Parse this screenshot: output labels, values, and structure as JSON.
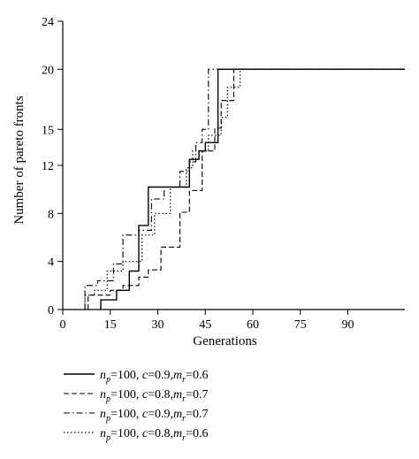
{
  "chart_data": {
    "type": "line",
    "step": true,
    "xlabel": "Generations",
    "ylabel": "Number of pareto fronts",
    "xlim": [
      0,
      108
    ],
    "ylim": [
      0,
      24
    ],
    "x_ticks": [
      "0",
      "15",
      "30",
      "45",
      "60",
      "75",
      "90"
    ],
    "y_ticks": [
      "0",
      "4",
      "8",
      "12",
      "15",
      "20",
      "24"
    ],
    "grid": false,
    "legend_position": "bottom",
    "series": [
      {
        "name": "n_p=100, c=0.9, m_r=0.6",
        "legend": {
          "var1": "n",
          "sub1": "p",
          "mid": "=100, ",
          "var2": "c",
          "mid2": "=0.9,",
          "var3": "m",
          "sub3": "r",
          "tail": "=0.6"
        },
        "style": "solid",
        "x": [
          12,
          12,
          17,
          17,
          21,
          21,
          24,
          24,
          27,
          27,
          40,
          40,
          43,
          43,
          45,
          45,
          49,
          49,
          108
        ],
        "y": [
          0,
          0.8,
          0.8,
          1.6,
          1.6,
          3.2,
          3.2,
          7,
          7,
          10.2,
          10.2,
          12.5,
          12.5,
          13.2,
          13.2,
          13.9,
          13.9,
          20,
          20
        ]
      },
      {
        "name": "n_p=100, c=0.8, m_r=0.7",
        "legend": {
          "var1": "n",
          "sub1": "p",
          "mid": "=100, ",
          "var2": "c",
          "mid2": "=0.8,",
          "var3": "m",
          "sub3": "r",
          "tail": "=0.7"
        },
        "style": "dashed",
        "x": [
          8,
          8,
          15,
          15,
          19,
          19,
          24,
          24,
          27,
          27,
          31,
          31,
          37,
          37,
          40,
          40,
          44,
          44,
          48,
          48,
          50,
          50,
          54,
          54,
          108
        ],
        "y": [
          0,
          1.2,
          1.2,
          1.6,
          1.6,
          2.0,
          2.0,
          2.7,
          2.7,
          3.3,
          3.3,
          5.2,
          5.2,
          8.1,
          8.1,
          9.9,
          9.9,
          13.2,
          13.2,
          15.1,
          15.1,
          17.4,
          17.4,
          20,
          20
        ]
      },
      {
        "name": "n_p=100, c=0.9, m_r=0.7",
        "legend": {
          "var1": "n",
          "sub1": "p",
          "mid": "=100, ",
          "var2": "c",
          "mid2": "=0.9,",
          "var3": "m",
          "sub3": "r",
          "tail": "=0.7"
        },
        "style": "dash-dot",
        "x": [
          7,
          7,
          11,
          11,
          16,
          16,
          19,
          19,
          24,
          24,
          28,
          28,
          32,
          32,
          37,
          37,
          40,
          40,
          42,
          42,
          44,
          44,
          46,
          46,
          108
        ],
        "y": [
          0,
          2.0,
          2.0,
          2.4,
          2.4,
          3.8,
          3.8,
          6.2,
          6.2,
          6.6,
          6.6,
          9.2,
          9.2,
          10.2,
          10.2,
          11.5,
          11.5,
          12.3,
          12.3,
          13.9,
          13.9,
          15.0,
          15.0,
          20,
          20
        ]
      },
      {
        "name": "n_p=100, c=0.8, m_r=0.6",
        "legend": {
          "var1": "n",
          "sub1": "p",
          "mid": "=100, ",
          "var2": "c",
          "mid2": "=0.8,",
          "var3": "m",
          "sub3": "r",
          "tail": "=0.6"
        },
        "style": "dotted",
        "x": [
          7,
          7,
          10,
          10,
          14,
          14,
          19,
          19,
          25,
          25,
          29,
          29,
          34,
          34,
          39,
          39,
          41,
          41,
          46,
          46,
          50,
          50,
          52,
          52,
          56,
          56,
          108
        ],
        "y": [
          0,
          1.2,
          1.2,
          1.6,
          1.6,
          3.2,
          3.2,
          4.0,
          4.0,
          6.2,
          6.2,
          8.0,
          8.0,
          10.2,
          10.2,
          11.8,
          11.8,
          13.2,
          13.2,
          14.5,
          14.5,
          16.0,
          16.0,
          18.5,
          18.5,
          20,
          20
        ]
      }
    ]
  }
}
